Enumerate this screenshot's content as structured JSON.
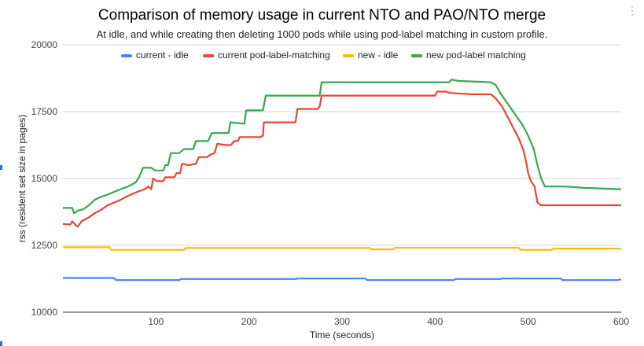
{
  "chart_data": {
    "type": "line",
    "title": "Comparison of memory usage in current NTO and PAO/NTO merge",
    "subtitle": "At idle, and while creating then deleting 1000 pods while using pod-label matching in custom profile.",
    "xlabel": "Time (seconds)",
    "ylabel": "rss (resident set size in pages)",
    "xlim": [
      0,
      600
    ],
    "ylim": [
      10000,
      20000
    ],
    "x_ticks": [
      100,
      200,
      300,
      400,
      500,
      600
    ],
    "y_ticks": [
      10000,
      12500,
      15000,
      17500,
      20000
    ],
    "grid": "horizontal",
    "legend_position": "top",
    "series": [
      {
        "name": "current - idle",
        "color": "#4285f4",
        "points": [
          [
            0,
            11280
          ],
          [
            55,
            11280
          ],
          [
            57,
            11200
          ],
          [
            125,
            11200
          ],
          [
            127,
            11240
          ],
          [
            250,
            11240
          ],
          [
            252,
            11260
          ],
          [
            325,
            11260
          ],
          [
            327,
            11200
          ],
          [
            420,
            11200
          ],
          [
            422,
            11240
          ],
          [
            470,
            11240
          ],
          [
            472,
            11260
          ],
          [
            535,
            11260
          ],
          [
            537,
            11200
          ],
          [
            596,
            11200
          ],
          [
            600,
            11230
          ]
        ]
      },
      {
        "name": "current pod-label-matching",
        "color": "#ea4335",
        "points": [
          [
            0,
            13300
          ],
          [
            8,
            13280
          ],
          [
            10,
            13400
          ],
          [
            14,
            13250
          ],
          [
            16,
            13200
          ],
          [
            20,
            13400
          ],
          [
            28,
            13550
          ],
          [
            34,
            13700
          ],
          [
            40,
            13800
          ],
          [
            48,
            14000
          ],
          [
            55,
            14100
          ],
          [
            62,
            14200
          ],
          [
            70,
            14350
          ],
          [
            80,
            14500
          ],
          [
            88,
            14600
          ],
          [
            92,
            14700
          ],
          [
            95,
            14600
          ],
          [
            97,
            15000
          ],
          [
            101,
            14900
          ],
          [
            108,
            14900
          ],
          [
            110,
            15050
          ],
          [
            120,
            15050
          ],
          [
            122,
            15200
          ],
          [
            126,
            15200
          ],
          [
            128,
            15550
          ],
          [
            135,
            15500
          ],
          [
            143,
            15550
          ],
          [
            146,
            15800
          ],
          [
            155,
            15800
          ],
          [
            159,
            15900
          ],
          [
            163,
            15950
          ],
          [
            166,
            16300
          ],
          [
            175,
            16250
          ],
          [
            180,
            16250
          ],
          [
            182,
            16300
          ],
          [
            184,
            16400
          ],
          [
            188,
            16400
          ],
          [
            190,
            16550
          ],
          [
            212,
            16550
          ],
          [
            215,
            16600
          ],
          [
            216,
            17100
          ],
          [
            250,
            17100
          ],
          [
            252,
            17600
          ],
          [
            274,
            17600
          ],
          [
            276,
            17700
          ],
          [
            278,
            18100
          ],
          [
            400,
            18100
          ],
          [
            402,
            18250
          ],
          [
            412,
            18250
          ],
          [
            416,
            18200
          ],
          [
            440,
            18150
          ],
          [
            460,
            18150
          ],
          [
            465,
            18000
          ],
          [
            472,
            17700
          ],
          [
            478,
            17300
          ],
          [
            484,
            16900
          ],
          [
            490,
            16500
          ],
          [
            495,
            16050
          ],
          [
            498,
            15600
          ],
          [
            500,
            15200
          ],
          [
            503,
            14900
          ],
          [
            507,
            14700
          ],
          [
            510,
            14100
          ],
          [
            514,
            14000
          ],
          [
            522,
            14000
          ],
          [
            600,
            14000
          ]
        ]
      },
      {
        "name": "new - idle",
        "color": "#fbbc04",
        "points": [
          [
            0,
            12430
          ],
          [
            50,
            12430
          ],
          [
            52,
            12330
          ],
          [
            130,
            12330
          ],
          [
            132,
            12400
          ],
          [
            330,
            12400
          ],
          [
            332,
            12350
          ],
          [
            355,
            12350
          ],
          [
            357,
            12410
          ],
          [
            490,
            12410
          ],
          [
            492,
            12330
          ],
          [
            525,
            12330
          ],
          [
            527,
            12380
          ],
          [
            595,
            12380
          ],
          [
            600,
            12360
          ]
        ]
      },
      {
        "name": "new pod-label matching",
        "color": "#34a853",
        "points": [
          [
            0,
            13900
          ],
          [
            10,
            13900
          ],
          [
            12,
            13700
          ],
          [
            16,
            13800
          ],
          [
            22,
            13850
          ],
          [
            28,
            14000
          ],
          [
            34,
            14200
          ],
          [
            40,
            14300
          ],
          [
            48,
            14400
          ],
          [
            55,
            14500
          ],
          [
            62,
            14600
          ],
          [
            70,
            14700
          ],
          [
            78,
            14850
          ],
          [
            82,
            15050
          ],
          [
            86,
            15400
          ],
          [
            95,
            15400
          ],
          [
            99,
            15300
          ],
          [
            108,
            15300
          ],
          [
            110,
            15500
          ],
          [
            113,
            15500
          ],
          [
            116,
            15950
          ],
          [
            125,
            15950
          ],
          [
            130,
            16100
          ],
          [
            140,
            16100
          ],
          [
            143,
            16400
          ],
          [
            156,
            16400
          ],
          [
            160,
            16700
          ],
          [
            178,
            16700
          ],
          [
            180,
            17100
          ],
          [
            195,
            17050
          ],
          [
            197,
            17550
          ],
          [
            215,
            17550
          ],
          [
            218,
            18100
          ],
          [
            276,
            18100
          ],
          [
            278,
            18600
          ],
          [
            415,
            18600
          ],
          [
            418,
            18700
          ],
          [
            425,
            18650
          ],
          [
            460,
            18600
          ],
          [
            465,
            18500
          ],
          [
            470,
            18200
          ],
          [
            478,
            17800
          ],
          [
            486,
            17400
          ],
          [
            494,
            17000
          ],
          [
            500,
            16600
          ],
          [
            506,
            16100
          ],
          [
            510,
            15500
          ],
          [
            514,
            15000
          ],
          [
            518,
            14700
          ],
          [
            540,
            14700
          ],
          [
            560,
            14650
          ],
          [
            600,
            14600
          ]
        ]
      }
    ]
  }
}
